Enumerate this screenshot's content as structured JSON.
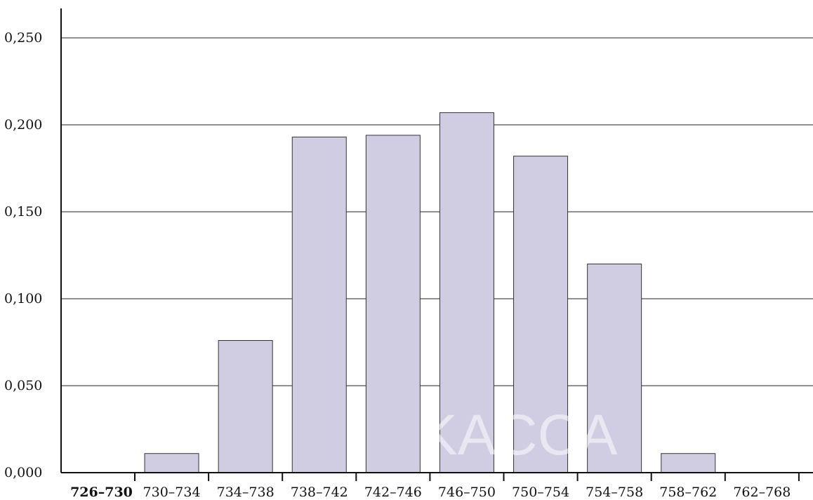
{
  "chart_data": {
    "type": "bar",
    "title": "",
    "xlabel": "",
    "ylabel": "",
    "categories": [
      "726–730",
      "730–734",
      "734–738",
      "738–742",
      "742–746",
      "746–750",
      "750–754",
      "754–758",
      "758–762",
      "762–768"
    ],
    "values": [
      0.0,
      0.011,
      0.076,
      0.193,
      0.194,
      0.207,
      0.182,
      0.12,
      0.011,
      0.0
    ],
    "yticks": [
      "0,000",
      "0,050",
      "0,100",
      "0,150",
      "0,200",
      "0,250"
    ],
    "ylim": [
      0,
      0.25
    ],
    "grid": true,
    "legend": "none",
    "bar_color": "#d0cde3",
    "bar_edge_color": "#333333",
    "watermark": "KACCA"
  }
}
